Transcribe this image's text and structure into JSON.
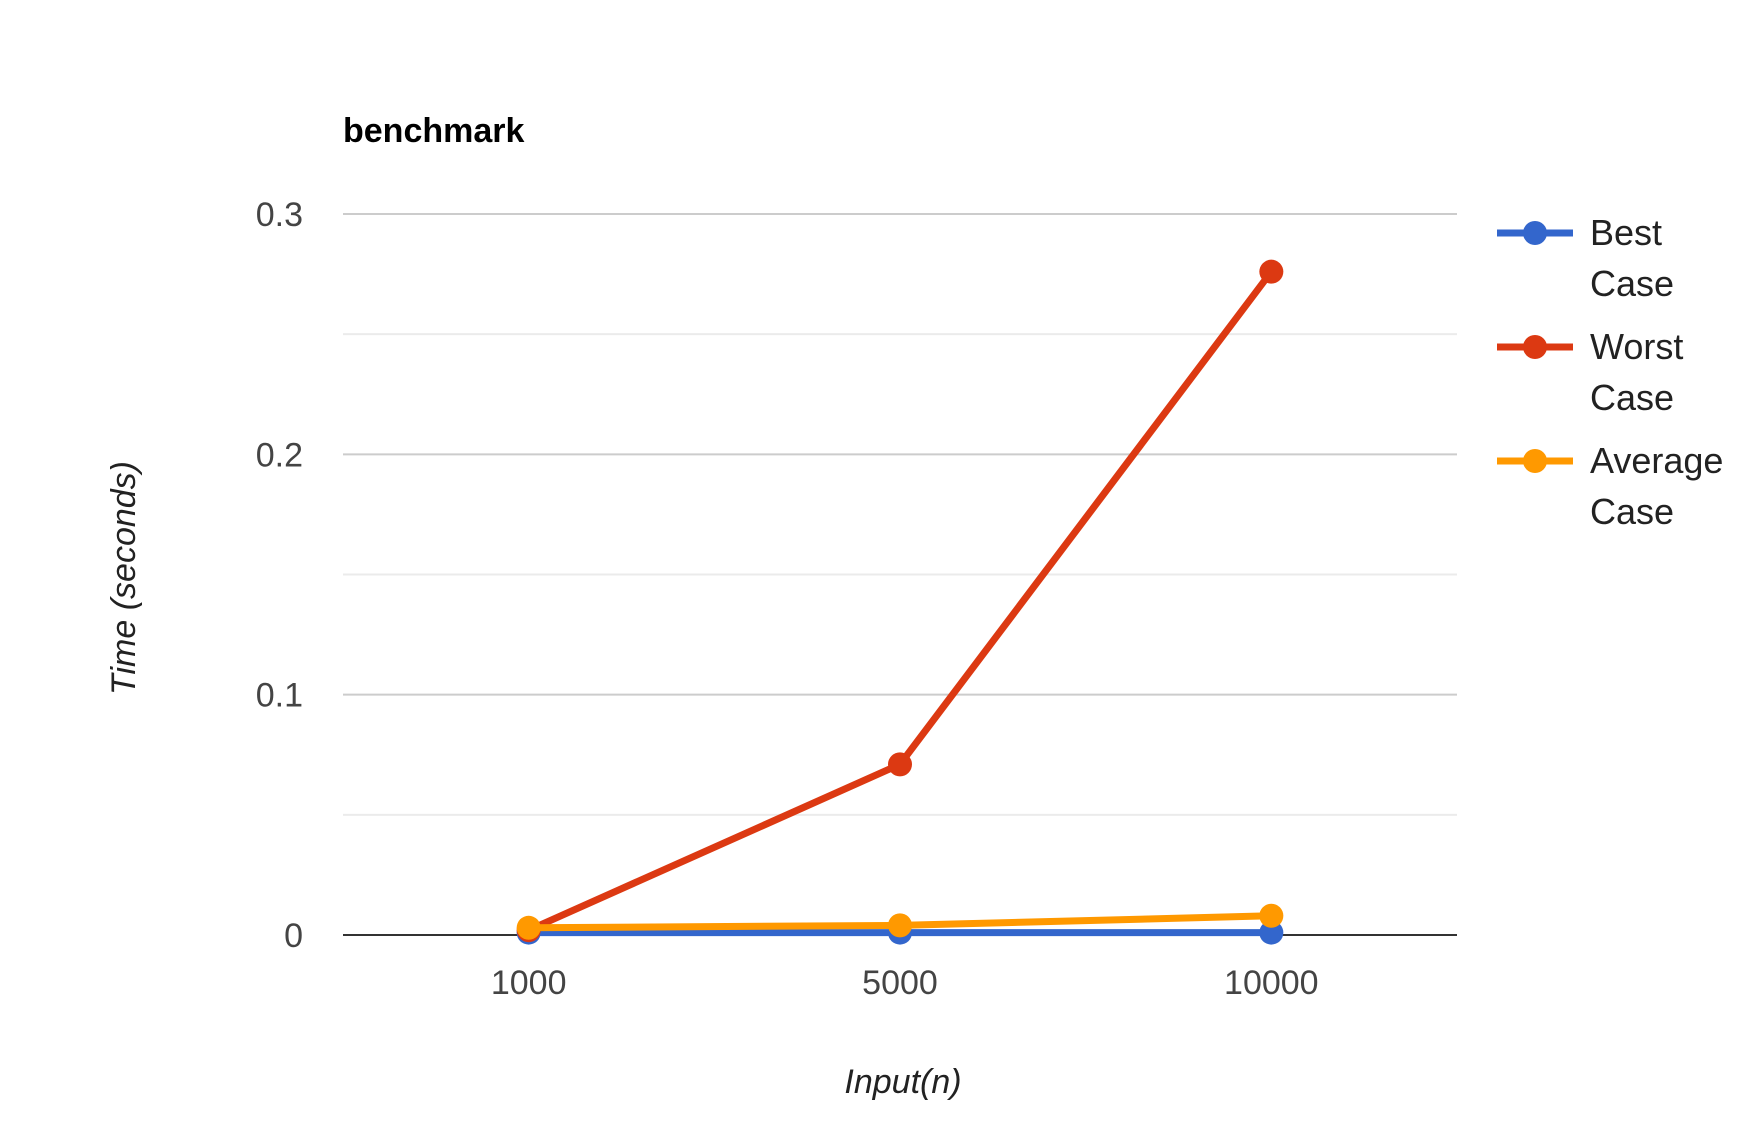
{
  "chart_data": {
    "type": "line",
    "title": "benchmark",
    "xlabel": "Input(n)",
    "ylabel": "Time (seconds)",
    "categories": [
      "1000",
      "5000",
      "10000"
    ],
    "ylim": [
      0,
      0.3
    ],
    "yticks": [
      "0",
      "0.1",
      "0.2",
      "0.3"
    ],
    "grid": true,
    "legend_position": "right",
    "series": [
      {
        "name": "Best Case",
        "name_lines": [
          "Best",
          "Case"
        ],
        "color": "#3366cc",
        "values": [
          0.001,
          0.001,
          0.001
        ]
      },
      {
        "name": "Worst Case",
        "name_lines": [
          "Worst",
          "Case"
        ],
        "color": "#dc3912",
        "values": [
          0.002,
          0.071,
          0.276
        ]
      },
      {
        "name": "Average Case",
        "name_lines": [
          "Average",
          "Case"
        ],
        "color": "#ff9900",
        "values": [
          0.003,
          0.004,
          0.008
        ]
      }
    ]
  }
}
